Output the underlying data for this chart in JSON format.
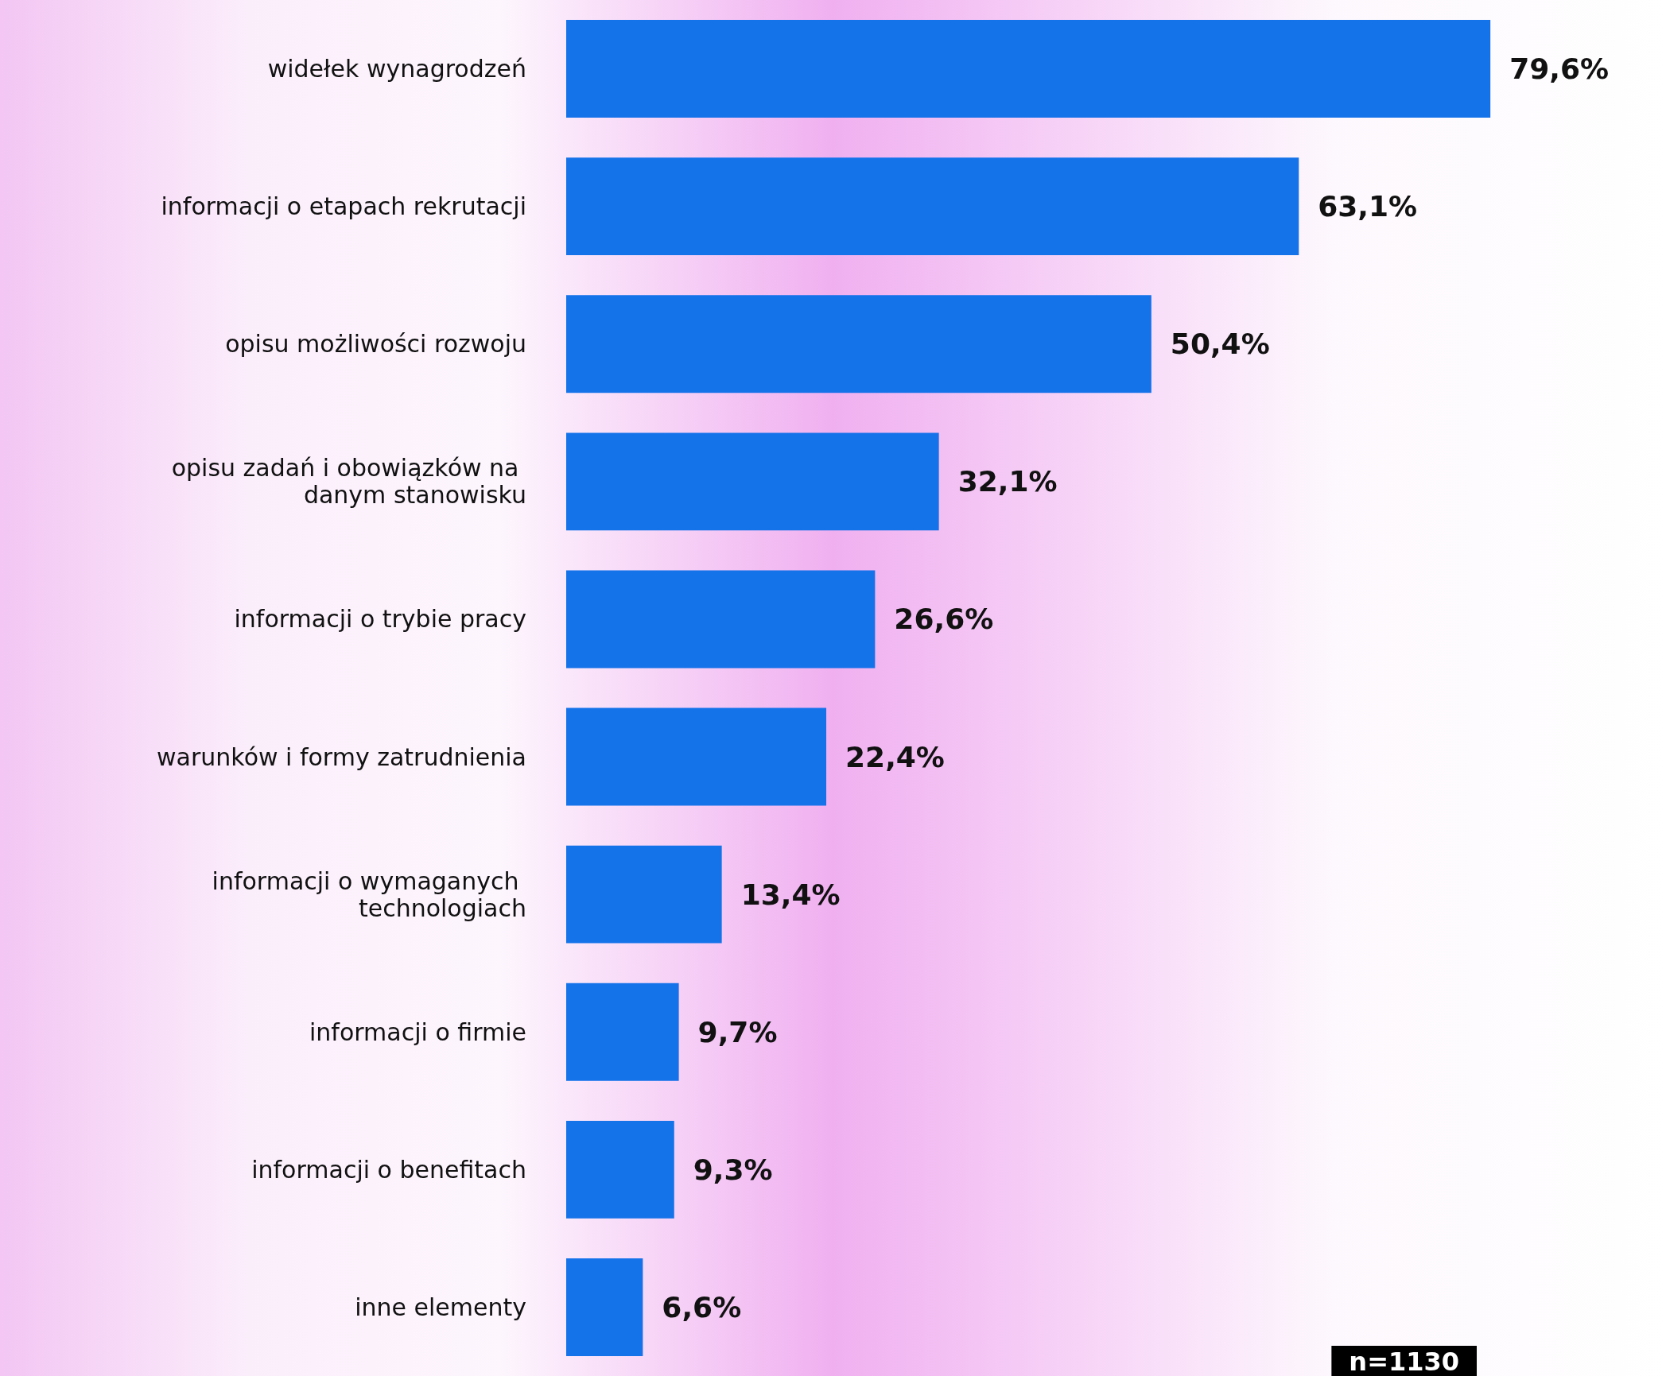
{
  "chart_data": {
    "type": "bar",
    "orientation": "horizontal",
    "categories": [
      "widełek wynagrodzeń",
      "informacji o etapach rekrutacji",
      "opisu możliwości rozwoju",
      "opisu zadań i obowiązków na danym stanowisku",
      "informacji o trybie pracy",
      "warunków i formy zatrudnienia",
      "informacji o wymaganych technologiach",
      "informacji o firmie",
      "informacji o benefitach",
      "inne elementy"
    ],
    "values": [
      79.6,
      63.1,
      50.4,
      32.1,
      26.6,
      22.4,
      13.4,
      9.7,
      9.3,
      6.6
    ],
    "value_labels": [
      "79,6%",
      "63,1%",
      "50,4%",
      "32,1%",
      "26,6%",
      "22,4%",
      "13,4%",
      "9,7%",
      "9,3%",
      "6,6%"
    ],
    "color": "#1573ea",
    "tick_labels": "y",
    "annotations": [
      "n=1130"
    ]
  }
}
